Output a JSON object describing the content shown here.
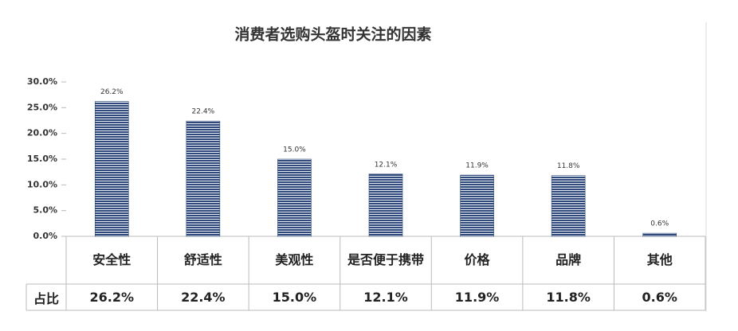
{
  "chart_data": {
    "type": "bar",
    "title": "消费者选购头盔时关注的因素",
    "categories": [
      "安全性",
      "舒适性",
      "美观性",
      "是否便于携带",
      "价格",
      "品牌",
      "其他"
    ],
    "series": [
      {
        "name": "占比",
        "color": "#2f4a7a",
        "values": [
          26.2,
          22.4,
          15.0,
          12.1,
          11.9,
          11.8,
          0.6
        ],
        "value_labels": [
          "26.2%",
          "22.4%",
          "15.0%",
          "12.1%",
          "11.9%",
          "11.8%",
          "0.6%"
        ]
      }
    ],
    "ylim": [
      0,
      30
    ],
    "yticks": [
      {
        "value": 0,
        "label": "0.0%"
      },
      {
        "value": 5,
        "label": "5.0%"
      },
      {
        "value": 10,
        "label": "10.0%"
      },
      {
        "value": 15,
        "label": "15.0%"
      },
      {
        "value": 20,
        "label": "20.0%"
      },
      {
        "value": 25,
        "label": "25.0%"
      },
      {
        "value": 30,
        "label": "30.0%"
      }
    ],
    "grid": false
  }
}
